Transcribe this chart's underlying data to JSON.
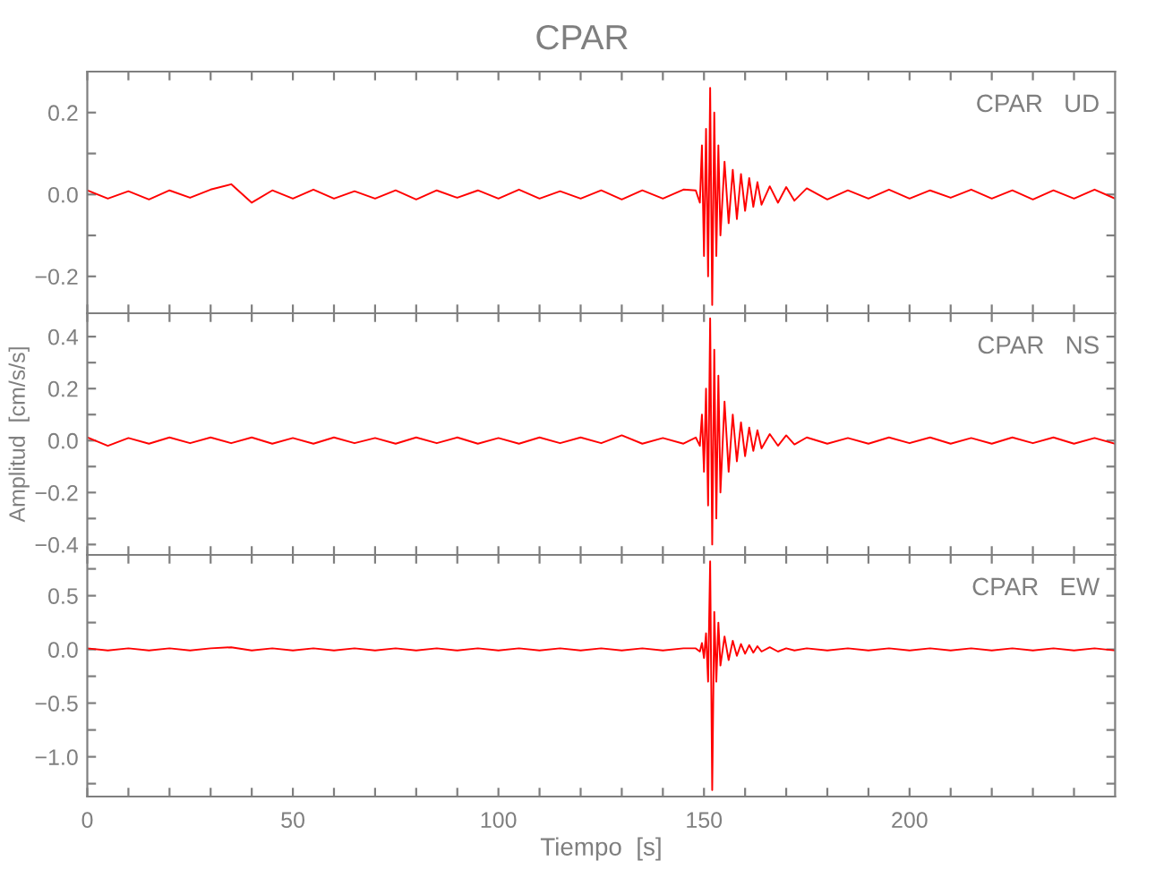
{
  "chart_data": [
    {
      "type": "line",
      "title": "CPAR",
      "annotations": [
        "CPAR   UD"
      ],
      "xlim": [
        0,
        250
      ],
      "ylim": [
        -0.29,
        0.3
      ],
      "tick_labels": "y",
      "grid": false,
      "xticks": [
        0,
        {
          "value": 10,
          "label": null
        },
        {
          "value": 20,
          "label": null
        },
        {
          "value": 30,
          "label": null
        },
        {
          "value": 40,
          "label": null
        },
        50,
        {
          "value": 60,
          "label": null
        },
        {
          "value": 70,
          "label": null
        },
        {
          "value": 80,
          "label": null
        },
        {
          "value": 90,
          "label": null
        },
        100,
        {
          "value": 110,
          "label": null
        },
        {
          "value": 120,
          "label": null
        },
        {
          "value": 130,
          "label": null
        },
        {
          "value": 140,
          "label": null
        },
        150,
        {
          "value": 160,
          "label": null
        },
        {
          "value": 170,
          "label": null
        },
        {
          "value": 180,
          "label": null
        },
        {
          "value": 190,
          "label": null
        },
        200,
        {
          "value": 210,
          "label": null
        },
        {
          "value": 220,
          "label": null
        },
        {
          "value": 230,
          "label": null
        },
        {
          "value": 240,
          "label": null
        }
      ],
      "yticks": [
        {
          "value": -0.2,
          "label": "−0.2"
        },
        {
          "value": -0.1,
          "label": null
        },
        {
          "value": 0.0,
          "label": "0.0"
        },
        {
          "value": 0.1,
          "label": null
        },
        0.2
      ],
      "series": [
        {
          "color": "#ff0000",
          "x": [
            0,
            5,
            10,
            15,
            20,
            25,
            30,
            35,
            40,
            45,
            50,
            55,
            60,
            65,
            70,
            75,
            80,
            85,
            90,
            95,
            100,
            105,
            110,
            115,
            120,
            125,
            130,
            135,
            140,
            145,
            148,
            149,
            149.5,
            150,
            150.5,
            151,
            151.5,
            152,
            152.5,
            153,
            153.5,
            154,
            155,
            156,
            157,
            158,
            159,
            160,
            161,
            162,
            163,
            164,
            166,
            168,
            170,
            172,
            175,
            180,
            185,
            190,
            195,
            200,
            205,
            210,
            215,
            220,
            225,
            230,
            235,
            240,
            245,
            250
          ],
          "values": [
            0.01,
            -0.01,
            0.008,
            -0.012,
            0.01,
            -0.008,
            0.012,
            0.025,
            -0.02,
            0.01,
            -0.01,
            0.012,
            -0.01,
            0.008,
            -0.01,
            0.01,
            -0.012,
            0.01,
            -0.008,
            0.01,
            -0.01,
            0.012,
            -0.01,
            0.008,
            -0.01,
            0.01,
            -0.012,
            0.01,
            -0.01,
            0.012,
            0.01,
            -0.02,
            0.12,
            -0.15,
            0.16,
            -0.2,
            0.26,
            -0.27,
            0.2,
            -0.15,
            0.12,
            -0.1,
            0.08,
            -0.07,
            0.06,
            -0.06,
            0.05,
            -0.04,
            0.04,
            -0.03,
            0.03,
            -0.025,
            0.02,
            -0.02,
            0.018,
            -0.015,
            0.015,
            -0.012,
            0.01,
            -0.01,
            0.012,
            -0.01,
            0.01,
            -0.008,
            0.012,
            -0.01,
            0.01,
            -0.012,
            0.01,
            -0.01,
            0.012,
            -0.01
          ]
        }
      ]
    },
    {
      "type": "line",
      "ylabel": "Amplitud  [cm/s/s]",
      "annotations": [
        "CPAR   NS"
      ],
      "xlim": [
        0,
        250
      ],
      "ylim": [
        -0.44,
        0.49
      ],
      "tick_labels": "y",
      "grid": false,
      "xticks": [
        0,
        {
          "value": 10,
          "label": null
        },
        {
          "value": 20,
          "label": null
        },
        {
          "value": 30,
          "label": null
        },
        {
          "value": 40,
          "label": null
        },
        50,
        {
          "value": 60,
          "label": null
        },
        {
          "value": 70,
          "label": null
        },
        {
          "value": 80,
          "label": null
        },
        {
          "value": 90,
          "label": null
        },
        100,
        {
          "value": 110,
          "label": null
        },
        {
          "value": 120,
          "label": null
        },
        {
          "value": 130,
          "label": null
        },
        {
          "value": 140,
          "label": null
        },
        150,
        {
          "value": 160,
          "label": null
        },
        {
          "value": 170,
          "label": null
        },
        {
          "value": 180,
          "label": null
        },
        {
          "value": 190,
          "label": null
        },
        200,
        {
          "value": 210,
          "label": null
        },
        {
          "value": 220,
          "label": null
        },
        {
          "value": 230,
          "label": null
        },
        {
          "value": 240,
          "label": null
        }
      ],
      "yticks": [
        {
          "value": -0.4,
          "label": "−0.4"
        },
        {
          "value": -0.3,
          "label": null
        },
        {
          "value": -0.2,
          "label": "−0.2"
        },
        {
          "value": -0.1,
          "label": null
        },
        {
          "value": 0.0,
          "label": "0.0"
        },
        {
          "value": 0.1,
          "label": null
        },
        0.2,
        {
          "value": 0.3,
          "label": null
        },
        0.4
      ],
      "series": [
        {
          "color": "#ff0000",
          "x": [
            0,
            5,
            10,
            15,
            20,
            25,
            30,
            35,
            40,
            45,
            50,
            55,
            60,
            65,
            70,
            75,
            80,
            85,
            90,
            95,
            100,
            105,
            110,
            115,
            120,
            125,
            130,
            135,
            140,
            145,
            148,
            149,
            149.5,
            150,
            150.5,
            151,
            151.5,
            152,
            152.5,
            153,
            153.5,
            154,
            155,
            156,
            157,
            158,
            159,
            160,
            161,
            162,
            163,
            164,
            166,
            168,
            170,
            172,
            175,
            180,
            185,
            190,
            195,
            200,
            205,
            210,
            215,
            220,
            225,
            230,
            235,
            240,
            245,
            250
          ],
          "values": [
            0.012,
            -0.02,
            0.01,
            -0.012,
            0.012,
            -0.01,
            0.012,
            -0.01,
            0.012,
            -0.012,
            0.01,
            -0.012,
            0.012,
            -0.01,
            0.01,
            -0.012,
            0.012,
            -0.01,
            0.012,
            -0.012,
            0.01,
            -0.012,
            0.012,
            -0.01,
            0.012,
            -0.01,
            0.02,
            -0.012,
            0.01,
            -0.012,
            0.012,
            -0.02,
            0.1,
            -0.12,
            0.2,
            -0.25,
            0.47,
            -0.4,
            0.35,
            -0.3,
            0.25,
            -0.2,
            0.15,
            -0.12,
            0.1,
            -0.08,
            0.07,
            -0.06,
            0.05,
            -0.04,
            0.04,
            -0.03,
            0.025,
            -0.02,
            0.02,
            -0.015,
            0.012,
            -0.012,
            0.01,
            -0.012,
            0.012,
            -0.01,
            0.012,
            -0.012,
            0.01,
            -0.012,
            0.012,
            -0.01,
            0.012,
            -0.012,
            0.01,
            -0.012
          ]
        }
      ]
    },
    {
      "type": "line",
      "xlabel": "Tiempo  [s]",
      "annotations": [
        "CPAR   EW"
      ],
      "xlim": [
        0,
        250
      ],
      "ylim": [
        -1.37,
        0.88
      ],
      "grid": false,
      "xticks": [
        0,
        {
          "value": 10,
          "label": null
        },
        {
          "value": 20,
          "label": null
        },
        {
          "value": 30,
          "label": null
        },
        {
          "value": 40,
          "label": null
        },
        50,
        {
          "value": 60,
          "label": null
        },
        {
          "value": 70,
          "label": null
        },
        {
          "value": 80,
          "label": null
        },
        {
          "value": 90,
          "label": null
        },
        100,
        {
          "value": 110,
          "label": null
        },
        {
          "value": 120,
          "label": null
        },
        {
          "value": 130,
          "label": null
        },
        {
          "value": 140,
          "label": null
        },
        150,
        {
          "value": 160,
          "label": null
        },
        {
          "value": 170,
          "label": null
        },
        {
          "value": 180,
          "label": null
        },
        {
          "value": 190,
          "label": null
        },
        200,
        {
          "value": 210,
          "label": null
        },
        {
          "value": 220,
          "label": null
        },
        {
          "value": 230,
          "label": null
        },
        {
          "value": 240,
          "label": null
        }
      ],
      "yticks": [
        {
          "value": -1.25,
          "label": null
        },
        {
          "value": -1.0,
          "label": "−1.0"
        },
        {
          "value": -0.75,
          "label": null
        },
        {
          "value": -0.5,
          "label": "−0.5"
        },
        {
          "value": -0.25,
          "label": null
        },
        {
          "value": 0.0,
          "label": "0.0"
        },
        {
          "value": 0.25,
          "label": null
        },
        0.5,
        {
          "value": 0.75,
          "label": null
        }
      ],
      "series": [
        {
          "color": "#ff0000",
          "x": [
            0,
            5,
            10,
            15,
            20,
            25,
            30,
            35,
            40,
            45,
            50,
            55,
            60,
            65,
            70,
            75,
            80,
            85,
            90,
            95,
            100,
            105,
            110,
            115,
            120,
            125,
            130,
            135,
            140,
            145,
            148,
            149,
            149.5,
            150,
            150.5,
            151,
            151.5,
            152,
            152.5,
            153,
            153.5,
            154,
            155,
            156,
            157,
            158,
            159,
            160,
            161,
            162,
            163,
            164,
            166,
            168,
            170,
            172,
            175,
            180,
            185,
            190,
            195,
            200,
            205,
            210,
            215,
            220,
            225,
            230,
            235,
            240,
            245,
            250
          ],
          "values": [
            0.01,
            -0.01,
            0.01,
            -0.01,
            0.01,
            -0.01,
            0.01,
            0.02,
            -0.01,
            0.01,
            -0.01,
            0.01,
            -0.01,
            0.01,
            -0.01,
            0.01,
            -0.01,
            0.01,
            -0.01,
            0.01,
            -0.01,
            0.01,
            -0.01,
            0.01,
            -0.01,
            0.01,
            -0.01,
            0.01,
            -0.01,
            0.01,
            0.01,
            -0.02,
            0.06,
            -0.08,
            0.15,
            -0.3,
            0.82,
            -1.31,
            0.35,
            -0.3,
            0.25,
            -0.15,
            0.12,
            -0.1,
            0.08,
            -0.06,
            0.05,
            -0.04,
            0.04,
            -0.03,
            0.03,
            -0.02,
            0.02,
            -0.02,
            0.01,
            -0.01,
            0.01,
            -0.01,
            0.01,
            -0.01,
            0.01,
            -0.01,
            0.01,
            -0.01,
            0.01,
            -0.01,
            0.01,
            -0.01,
            0.01,
            -0.01,
            0.01,
            -0.01
          ]
        }
      ]
    }
  ]
}
